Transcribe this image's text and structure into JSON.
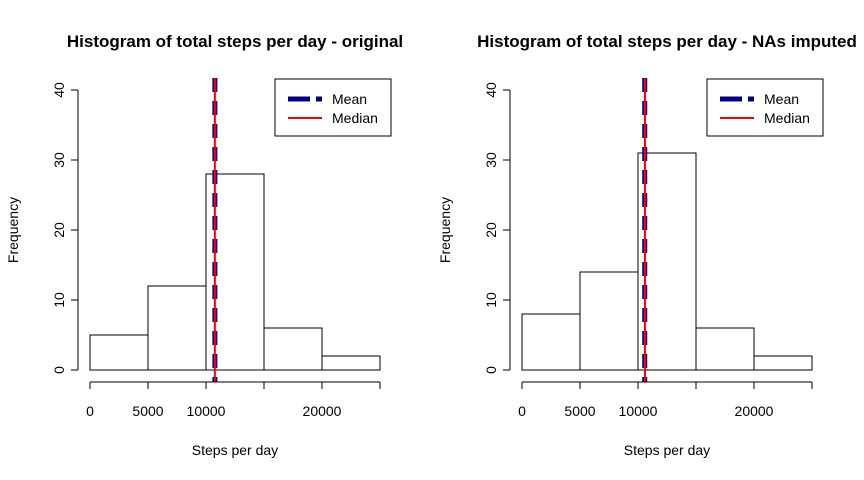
{
  "chart_data": [
    {
      "type": "bar",
      "title": "Histogram of total steps per day - original",
      "xlabel": "Steps per day",
      "ylabel": "Frequency",
      "bins": [
        {
          "start": 0,
          "end": 5000,
          "count": 5
        },
        {
          "start": 5000,
          "end": 10000,
          "count": 12
        },
        {
          "start": 10000,
          "end": 15000,
          "count": 28
        },
        {
          "start": 15000,
          "end": 20000,
          "count": 6
        },
        {
          "start": 20000,
          "end": 25000,
          "count": 2
        }
      ],
      "xlim": [
        0,
        25000
      ],
      "ylim": [
        0,
        40
      ],
      "xticks": [
        0,
        5000,
        10000,
        20000
      ],
      "yticks": [
        0,
        10,
        20,
        30,
        40
      ],
      "mean": 10766,
      "median": 10765,
      "legend": {
        "position": "top-right",
        "entries": [
          {
            "label": "Mean",
            "color": "#000080",
            "style": "dashed"
          },
          {
            "label": "Median",
            "color": "#ff0000",
            "style": "solid"
          }
        ]
      }
    },
    {
      "type": "bar",
      "title": "Histogram of total steps per day - NAs imputed",
      "xlabel": "Steps per day",
      "ylabel": "Frequency",
      "bins": [
        {
          "start": 0,
          "end": 5000,
          "count": 8
        },
        {
          "start": 5000,
          "end": 10000,
          "count": 14
        },
        {
          "start": 10000,
          "end": 15000,
          "count": 31
        },
        {
          "start": 15000,
          "end": 20000,
          "count": 6
        },
        {
          "start": 20000,
          "end": 25000,
          "count": 2
        }
      ],
      "xlim": [
        0,
        25000
      ],
      "ylim": [
        0,
        40
      ],
      "xticks": [
        0,
        5000,
        10000,
        20000
      ],
      "yticks": [
        0,
        10,
        20,
        30,
        40
      ],
      "mean": 10580,
      "median": 10600,
      "legend": {
        "position": "top-right",
        "entries": [
          {
            "label": "Mean",
            "color": "#000080",
            "style": "dashed"
          },
          {
            "label": "Median",
            "color": "#ff0000",
            "style": "solid"
          }
        ]
      }
    }
  ]
}
